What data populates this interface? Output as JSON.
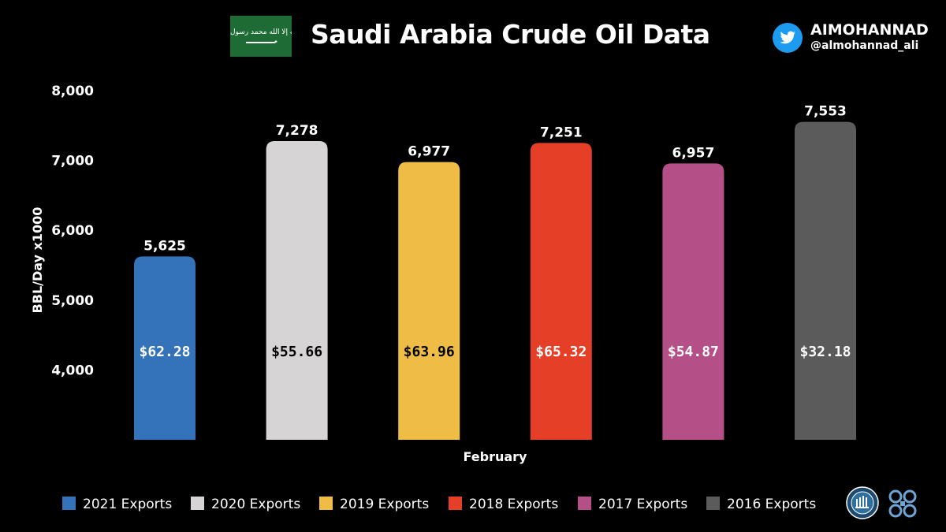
{
  "header": {
    "flag_text": "لا إله إلا الله محمد رسول الله",
    "handle_name": "AIMOHANNAD",
    "handle_at": "@almohannad_ali"
  },
  "colors": {
    "background": "#000000",
    "flag_green": "#1e6b35",
    "twitter_blue": "#1d9bf0",
    "opec_blue": "#6ea4d6"
  },
  "chart_data": {
    "type": "bar",
    "title": "Saudi Arabia Crude Oil Data",
    "xlabel": "February",
    "ylabel": "BBL/Day x1000",
    "ylim": [
      3000,
      8000
    ],
    "yticks": [
      "4,000",
      "5,000",
      "6,000",
      "7,000",
      "8,000"
    ],
    "ytick_values": [
      4000,
      5000,
      6000,
      7000,
      8000
    ],
    "legend_position": "bottom",
    "series": [
      {
        "name": "2021 Exports",
        "value": 5625,
        "value_label": "5,625",
        "price": "$62.28",
        "color": "#3473b9",
        "price_color": "#ffffff"
      },
      {
        "name": "2020 Exports",
        "value": 7278,
        "value_label": "7,278",
        "price": "$55.66",
        "color": "#d6d4d5",
        "price_color": "#000000"
      },
      {
        "name": "2019 Exports",
        "value": 6977,
        "value_label": "6,977",
        "price": "$63.96",
        "color": "#efbd45",
        "price_color": "#000000"
      },
      {
        "name": "2018 Exports",
        "value": 7251,
        "value_label": "7,251",
        "price": "$65.32",
        "color": "#e63f28",
        "price_color": "#ffffff"
      },
      {
        "name": "2017 Exports",
        "value": 6957,
        "value_label": "6,957",
        "price": "$54.87",
        "color": "#b44f87",
        "price_color": "#ffffff"
      },
      {
        "name": "2016 Exports",
        "value": 7553,
        "value_label": "7,553",
        "price": "$32.18",
        "color": "#5b5b5b",
        "price_color": "#ffffff"
      }
    ]
  }
}
